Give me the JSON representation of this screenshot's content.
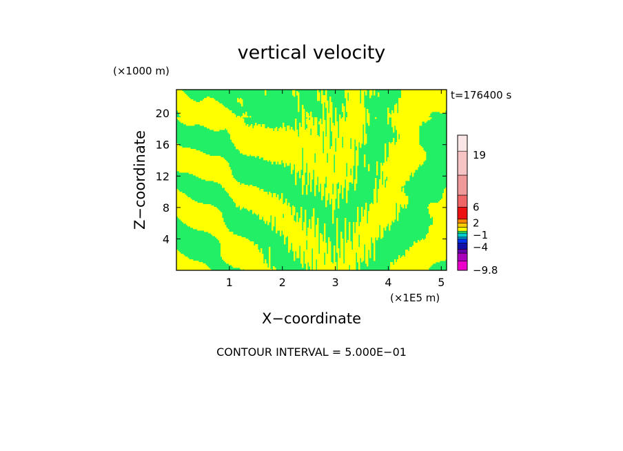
{
  "chart_data": {
    "type": "heatmap",
    "title": "vertical velocity",
    "time_label": "t=176400 s",
    "xlabel": "X−coordinate",
    "ylabel": "Z−coordinate",
    "x_unit": "(×1E5 m)",
    "y_unit": "(×1000 m)",
    "xlim": [
      0,
      5.1
    ],
    "ylim": [
      0,
      23
    ],
    "x_ticks": [
      "1",
      "2",
      "3",
      "4",
      "5"
    ],
    "y_ticks": [
      "4",
      "8",
      "12",
      "16",
      "20"
    ],
    "x_tick_values": [
      1,
      2,
      3,
      4,
      5
    ],
    "y_tick_values": [
      4,
      8,
      12,
      16,
      20
    ],
    "footer": "CONTOUR INTERVAL = 5.000E−01",
    "field_colors": {
      "positive": "#ffff00",
      "negative": "#22ee66"
    },
    "colorbar": {
      "labels": [
        "19",
        "6",
        "2",
        "−1",
        "−4",
        "−9.8"
      ],
      "label_values": [
        19,
        6,
        2,
        -1,
        -4,
        -9.8
      ],
      "min": -9.8,
      "max": 24,
      "bands": [
        {
          "from": -9.8,
          "to": -7.5,
          "color": "#ee00cc"
        },
        {
          "from": -7.5,
          "to": -5.5,
          "color": "#aa00bb"
        },
        {
          "from": -5.5,
          "to": -4.5,
          "color": "#6600aa"
        },
        {
          "from": -4.5,
          "to": -3.0,
          "color": "#1111aa"
        },
        {
          "from": -3.0,
          "to": -2.0,
          "color": "#0033ee"
        },
        {
          "from": -2.0,
          "to": -1.5,
          "color": "#0099ee"
        },
        {
          "from": -1.5,
          "to": -0.5,
          "color": "#00cccc"
        },
        {
          "from": -0.5,
          "to": 0.0,
          "color": "#22ee66"
        },
        {
          "from": 0.0,
          "to": 1.0,
          "color": "#ffff00"
        },
        {
          "from": 1.0,
          "to": 2.0,
          "color": "#ffcc00"
        },
        {
          "from": 2.0,
          "to": 3.0,
          "color": "#ff8800"
        },
        {
          "from": 3.0,
          "to": 6.0,
          "color": "#ee1111"
        },
        {
          "from": 6.0,
          "to": 9.0,
          "color": "#ee6666"
        },
        {
          "from": 9.0,
          "to": 14.0,
          "color": "#f09999"
        },
        {
          "from": 14.0,
          "to": 20.0,
          "color": "#f6c4c4"
        },
        {
          "from": 20.0,
          "to": 24.0,
          "color": "#fbe6e6"
        }
      ]
    }
  }
}
